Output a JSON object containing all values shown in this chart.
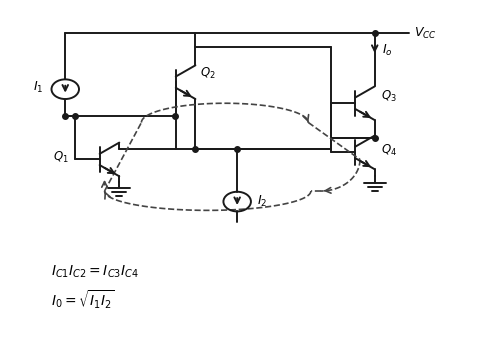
{
  "bg_color": "#ffffff",
  "line_color": "#1a1a1a",
  "dashed_color": "#444444",
  "vcc_label": "$V_{CC}$",
  "io_label": "$I_o$",
  "i1_label": "$I_1$",
  "i2_label": "$I_2$",
  "q1_label": "$Q_1$",
  "q2_label": "$Q_2$",
  "q3_label": "$Q_3$",
  "q4_label": "$Q_4$",
  "eq1": "$I_{C1}I_{C2} = I_{C3}I_{C4}$",
  "eq2": "$I_0 = \\sqrt{I_1 I_2}$",
  "figsize": [
    4.94,
    3.54
  ],
  "dpi": 100
}
